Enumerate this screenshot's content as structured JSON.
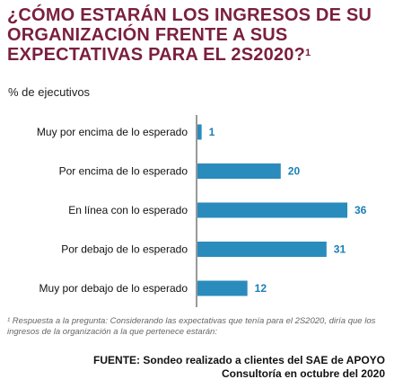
{
  "header": {
    "title": "¿CÓMO ESTARÁN LOS INGRESOS DE SU ORGANIZACIÓN FRENTE A SUS EXPECTATIVAS PARA EL 2S2020?",
    "title_footnote_mark": "1",
    "subtitle": "% de ejecutivos"
  },
  "chart_data": {
    "type": "bar",
    "orientation": "horizontal",
    "categories": [
      "Muy por encima de lo esperado",
      "Por encima de lo esperado",
      "En línea con lo esperado",
      "Por debajo de lo esperado",
      "Muy por debajo de lo esperado"
    ],
    "values": [
      1,
      20,
      36,
      31,
      12
    ],
    "data_labels": [
      "1",
      "20",
      "36",
      "31",
      "12"
    ],
    "xlim": [
      0,
      36
    ],
    "grid": false,
    "legend": "none",
    "bar_color": "#2a8bbd",
    "label_color": "#1a7fb4"
  },
  "footnote": "¹ Respuesta a la pregunta: Considerando las expectativas que tenía para el 2S2020, diría que los ingresos de la organización a la que pertenece estarán:",
  "source": "FUENTE: Sondeo realizado a clientes del SAE de APOYO Consultoría en octubre del 2020",
  "colors": {
    "title": "#7a1f3f",
    "axis": "#333333"
  }
}
